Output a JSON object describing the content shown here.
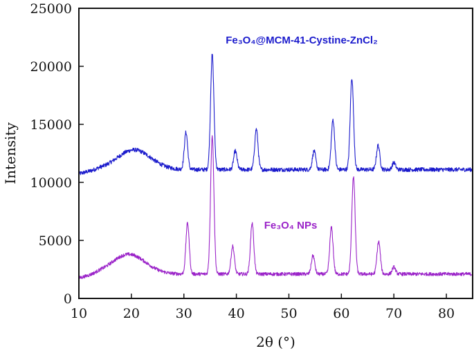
{
  "chart_data": {
    "type": "line",
    "xlabel": "2θ (°)",
    "ylabel": "Intensity",
    "xlim": [
      10,
      85
    ],
    "ylim": [
      0,
      25000
    ],
    "xticks": [
      10,
      20,
      30,
      40,
      50,
      60,
      70,
      80
    ],
    "yticks": [
      0,
      5000,
      10000,
      15000,
      20000,
      25000
    ],
    "grid": false,
    "series": [
      {
        "name": "Fe3O4@MCM-41-Cystine-ZnCl2",
        "color": "#1a1acc",
        "baseline": 11100,
        "noise": 180,
        "hump": {
          "center": 20.5,
          "height": 1700,
          "width": 4.5
        },
        "peaks": [
          {
            "x": 30.4,
            "y": 14300
          },
          {
            "x": 35.4,
            "y": 21000
          },
          {
            "x": 39.8,
            "y": 12700
          },
          {
            "x": 43.8,
            "y": 14600
          },
          {
            "x": 54.8,
            "y": 12700
          },
          {
            "x": 58.4,
            "y": 15400
          },
          {
            "x": 62.0,
            "y": 19000
          },
          {
            "x": 67.0,
            "y": 13200
          },
          {
            "x": 70.0,
            "y": 11700
          }
        ]
      },
      {
        "name": "Fe3O4 NPs",
        "color": "#9a22c8",
        "baseline": 2100,
        "noise": 150,
        "hump": {
          "center": 19.5,
          "height": 1700,
          "width": 4.5
        },
        "peaks": [
          {
            "x": 30.7,
            "y": 6500
          },
          {
            "x": 35.4,
            "y": 14000
          },
          {
            "x": 39.3,
            "y": 4500
          },
          {
            "x": 43.0,
            "y": 6500
          },
          {
            "x": 54.6,
            "y": 3700
          },
          {
            "x": 58.1,
            "y": 6100
          },
          {
            "x": 62.3,
            "y": 10500
          },
          {
            "x": 67.1,
            "y": 4900
          },
          {
            "x": 70.0,
            "y": 2700
          }
        ]
      }
    ],
    "annotations": [
      {
        "series": 0,
        "text": "Fe₃O₄@MCM-41-Cystine-ZnCl₂"
      },
      {
        "series": 1,
        "text": "Fe₃O₄ NPs"
      }
    ]
  }
}
